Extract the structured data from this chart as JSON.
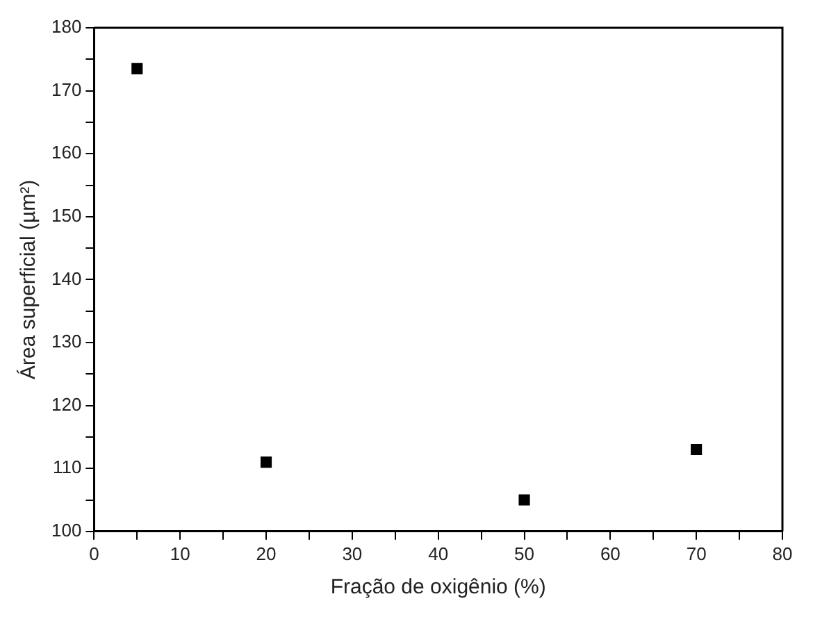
{
  "chart_data": {
    "type": "scatter",
    "xlabel": "Fração de oxigênio (%)",
    "ylabel": "Área superficial (µm²)",
    "x": [
      5,
      20,
      50,
      70
    ],
    "series": [
      {
        "color": "#000000",
        "values": [
          173.5,
          111,
          105,
          113
        ]
      }
    ],
    "xlim": [
      0,
      80
    ],
    "xticks": [
      0,
      {
        "value": 5,
        "label": null
      },
      10,
      {
        "value": 15,
        "label": null
      },
      20,
      {
        "value": 25,
        "label": null
      },
      30,
      {
        "value": 35,
        "label": null
      },
      40,
      {
        "value": 45,
        "label": null
      },
      50,
      {
        "value": 55,
        "label": null
      },
      60,
      {
        "value": 65,
        "label": null
      },
      70,
      {
        "value": 75,
        "label": null
      },
      80
    ],
    "ylim": [
      100,
      180
    ],
    "yticks": [
      100,
      {
        "value": 105,
        "label": null
      },
      110,
      {
        "value": 115,
        "label": null
      },
      120,
      {
        "value": 125,
        "label": null
      },
      130,
      {
        "value": 135,
        "label": null
      },
      140,
      {
        "value": 145,
        "label": null
      },
      150,
      {
        "value": 155,
        "label": null
      },
      160,
      {
        "value": 165,
        "label": null
      },
      170,
      {
        "value": 175,
        "label": null
      },
      180
    ],
    "grid": false,
    "legend": false,
    "marker": "square"
  }
}
